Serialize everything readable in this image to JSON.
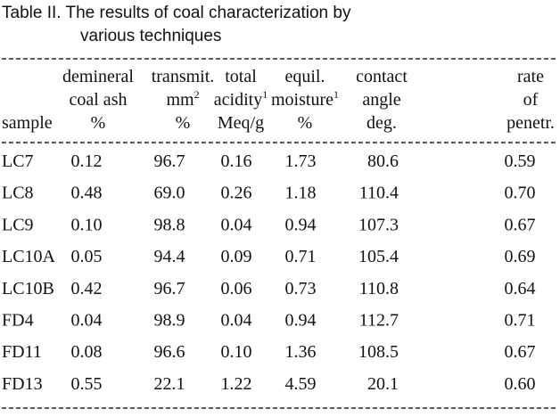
{
  "caption": [
    "Table II.  The results of coal characterization by",
    "various techniques"
  ],
  "table": {
    "header": [
      [
        {
          "text": ""
        },
        {
          "text": ""
        },
        {
          "text": "sample"
        }
      ],
      [
        {
          "text": "demineral"
        },
        {
          "text": "coal ash"
        },
        {
          "text": "%"
        }
      ],
      [
        {
          "text": "transmit."
        },
        {
          "text": "mm",
          "sup": "2"
        },
        {
          "text": "%"
        }
      ],
      [
        {
          "text": "total"
        },
        {
          "text": "acidity",
          "sup": "1"
        },
        {
          "text": "Meq/g"
        }
      ],
      [
        {
          "text": "equil."
        },
        {
          "text": "moisture",
          "sup": "1"
        },
        {
          "text": "%"
        }
      ],
      [
        {
          "text": "contact"
        },
        {
          "text": "angle"
        },
        {
          "text": "deg."
        }
      ],
      [
        {
          "text": "rate"
        },
        {
          "text": "of"
        },
        {
          "text": "penetr."
        }
      ]
    ],
    "rows": [
      [
        "LC7",
        "0.12",
        "96.7",
        "0.16",
        "1.73",
        "80.6",
        "0.59"
      ],
      [
        "LC8",
        "0.48",
        "69.0",
        "0.26",
        "1.18",
        "110.4",
        "0.70"
      ],
      [
        "LC9",
        "0.10",
        "98.8",
        "0.04",
        "0.94",
        "107.3",
        "0.67"
      ],
      [
        "LC10A",
        "0.05",
        "94.4",
        "0.09",
        "0.71",
        "105.4",
        "0.69"
      ],
      [
        "LC10B",
        "0.42",
        "96.7",
        "0.06",
        "0.73",
        "110.8",
        "0.64"
      ],
      [
        "FD4",
        "0.04",
        "98.9",
        "0.04",
        "0.94",
        "112.7",
        "0.71"
      ],
      [
        "FD11",
        "0.08",
        "96.6",
        "0.10",
        "1.36",
        "108.5",
        "0.67"
      ],
      [
        "FD13",
        "0.55",
        "22.1",
        "1.22",
        "4.59",
        "20.1",
        "0.60"
      ]
    ]
  }
}
